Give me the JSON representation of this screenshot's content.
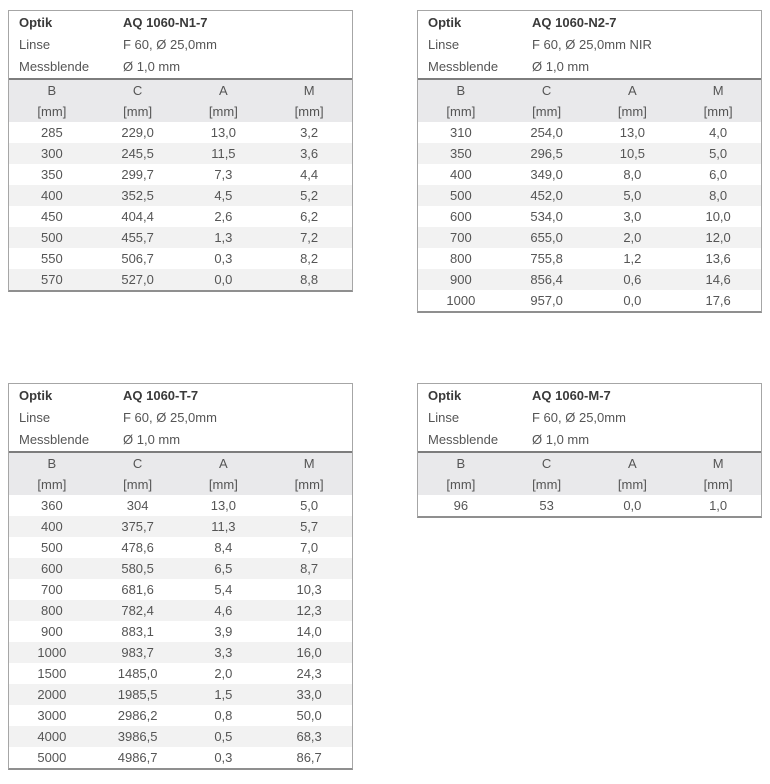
{
  "info_labels": {
    "optik": "Optik",
    "linse": "Linse",
    "messblende": "Messblende"
  },
  "columns": [
    "B",
    "C",
    "A",
    "M"
  ],
  "units": [
    "[mm]",
    "[mm]",
    "[mm]",
    "[mm]"
  ],
  "colors": {
    "band_bg": "#e9e9eb",
    "stripe_bg": "#f2f2f2",
    "border": "#a6a6a6",
    "bottom_border": "#8f8f8f",
    "divider": "#7d7d7d",
    "text": "#555555",
    "strong_text": "#3a3a3a"
  },
  "tables": [
    {
      "optik": "AQ 1060-N1-7",
      "linse": "F 60, Ø 25,0mm",
      "messblende": "Ø 1,0 mm",
      "rows": [
        [
          "285",
          "229,0",
          "13,0",
          "3,2"
        ],
        [
          "300",
          "245,5",
          "11,5",
          "3,6"
        ],
        [
          "350",
          "299,7",
          "7,3",
          "4,4"
        ],
        [
          "400",
          "352,5",
          "4,5",
          "5,2"
        ],
        [
          "450",
          "404,4",
          "2,6",
          "6,2"
        ],
        [
          "500",
          "455,7",
          "1,3",
          "7,2"
        ],
        [
          "550",
          "506,7",
          "0,3",
          "8,2"
        ],
        [
          "570",
          "527,0",
          "0,0",
          "8,8"
        ]
      ]
    },
    {
      "optik": "AQ 1060-N2-7",
      "linse": "F 60, Ø 25,0mm NIR",
      "messblende": "Ø 1,0 mm",
      "rows": [
        [
          "310",
          "254,0",
          "13,0",
          "4,0"
        ],
        [
          "350",
          "296,5",
          "10,5",
          "5,0"
        ],
        [
          "400",
          "349,0",
          "8,0",
          "6,0"
        ],
        [
          "500",
          "452,0",
          "5,0",
          "8,0"
        ],
        [
          "600",
          "534,0",
          "3,0",
          "10,0"
        ],
        [
          "700",
          "655,0",
          "2,0",
          "12,0"
        ],
        [
          "800",
          "755,8",
          "1,2",
          "13,6"
        ],
        [
          "900",
          "856,4",
          "0,6",
          "14,6"
        ],
        [
          "1000",
          "957,0",
          "0,0",
          "17,6"
        ]
      ]
    },
    {
      "optik": "AQ 1060-T-7",
      "linse": "F 60, Ø 25,0mm",
      "messblende": "Ø 1,0 mm",
      "rows": [
        [
          "360",
          "304",
          "13,0",
          "5,0"
        ],
        [
          "400",
          "375,7",
          "11,3",
          "5,7"
        ],
        [
          "500",
          "478,6",
          "8,4",
          "7,0"
        ],
        [
          "600",
          "580,5",
          "6,5",
          "8,7"
        ],
        [
          "700",
          "681,6",
          "5,4",
          "10,3"
        ],
        [
          "800",
          "782,4",
          "4,6",
          "12,3"
        ],
        [
          "900",
          "883,1",
          "3,9",
          "14,0"
        ],
        [
          "1000",
          "983,7",
          "3,3",
          "16,0"
        ],
        [
          "1500",
          "1485,0",
          "2,0",
          "24,3"
        ],
        [
          "2000",
          "1985,5",
          "1,5",
          "33,0"
        ],
        [
          "3000",
          "2986,2",
          "0,8",
          "50,0"
        ],
        [
          "4000",
          "3986,5",
          "0,5",
          "68,3"
        ],
        [
          "5000",
          "4986,7",
          "0,3",
          "86,7"
        ]
      ]
    },
    {
      "optik": "AQ 1060-M-7",
      "linse": "F 60, Ø 25,0mm",
      "messblende": "Ø 1,0 mm",
      "rows": [
        [
          "96",
          "53",
          "0,0",
          "1,0"
        ]
      ]
    }
  ]
}
